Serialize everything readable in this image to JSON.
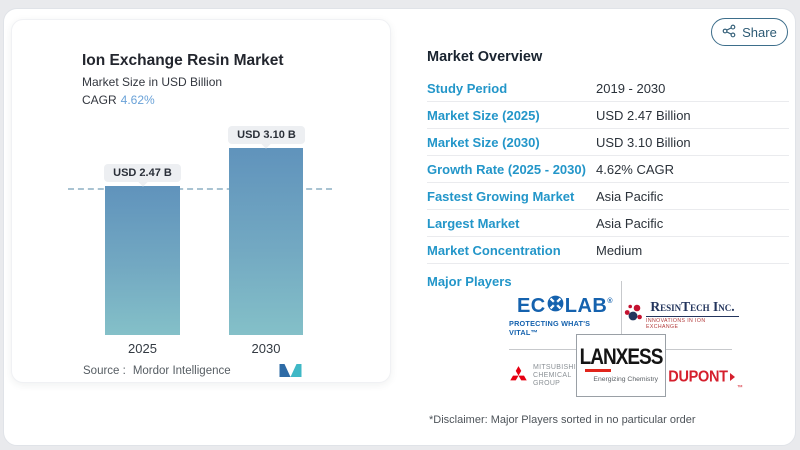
{
  "page": {
    "share_label": "Share"
  },
  "chart_card": {
    "title": "Ion Exchange Resin Market",
    "subtitle": "Market Size in USD Billion",
    "cagr_label": "CAGR",
    "cagr_value": "4.62%",
    "source_label": "Source :",
    "source_value": "Mordor Intelligence"
  },
  "chart_data": {
    "type": "bar",
    "categories": [
      "2025",
      "2030"
    ],
    "values": [
      2.47,
      3.1
    ],
    "bar_labels": [
      "USD 2.47 B",
      "USD 3.10 B"
    ],
    "title": "Ion Exchange Resin Market",
    "ylabel": "Market Size in USD Billion",
    "cagr": "4.62%",
    "ylim": [
      0,
      3.3
    ],
    "grid": "single dashed reference line at first bar value",
    "colors": {
      "bar_gradient_top": "#6093bc",
      "bar_gradient_bottom": "#84c0c8",
      "dashed_line": "#a9c3d2"
    }
  },
  "overview": {
    "heading": "Market Overview",
    "rows": [
      {
        "label": "Study Period",
        "value": "2019 - 2030"
      },
      {
        "label": "Market Size (2025)",
        "value": "USD 2.47 Billion"
      },
      {
        "label": "Market Size (2030)",
        "value": "USD 3.10 Billion"
      },
      {
        "label": "Growth Rate (2025 - 2030)",
        "value": "4.62% CAGR"
      },
      {
        "label": "Fastest Growing Market",
        "value": "Asia Pacific"
      },
      {
        "label": "Largest Market",
        "value": "Asia Pacific"
      },
      {
        "label": "Market Concentration",
        "value": "Medium"
      }
    ],
    "major_players_label": "Major Players",
    "disclaimer": "*Disclaimer: Major Players sorted in no particular order"
  },
  "logos": {
    "ecolab": {
      "name_left": "EC",
      "name_right": "LAB",
      "reg_mark": "®",
      "tagline": "PROTECTING WHAT'S VITAL™"
    },
    "resintech": {
      "name": "ResinTech Inc.",
      "tagline": "INNOVATIONS IN ION EXCHANGE"
    },
    "mitsubishi": {
      "line1": "MITSUBISHI",
      "line2": "CHEMICAL",
      "line3": "GROUP"
    },
    "lanxess": {
      "name": "LANXESS",
      "tagline": "Energizing Chemistry"
    },
    "dupont": {
      "name": "DUPONT",
      "tm_mark": "™"
    }
  },
  "accent_colors": {
    "label_teal": "#2396c9",
    "cagr_blue": "#6aa2d8",
    "share_border": "#3d6e8b"
  }
}
